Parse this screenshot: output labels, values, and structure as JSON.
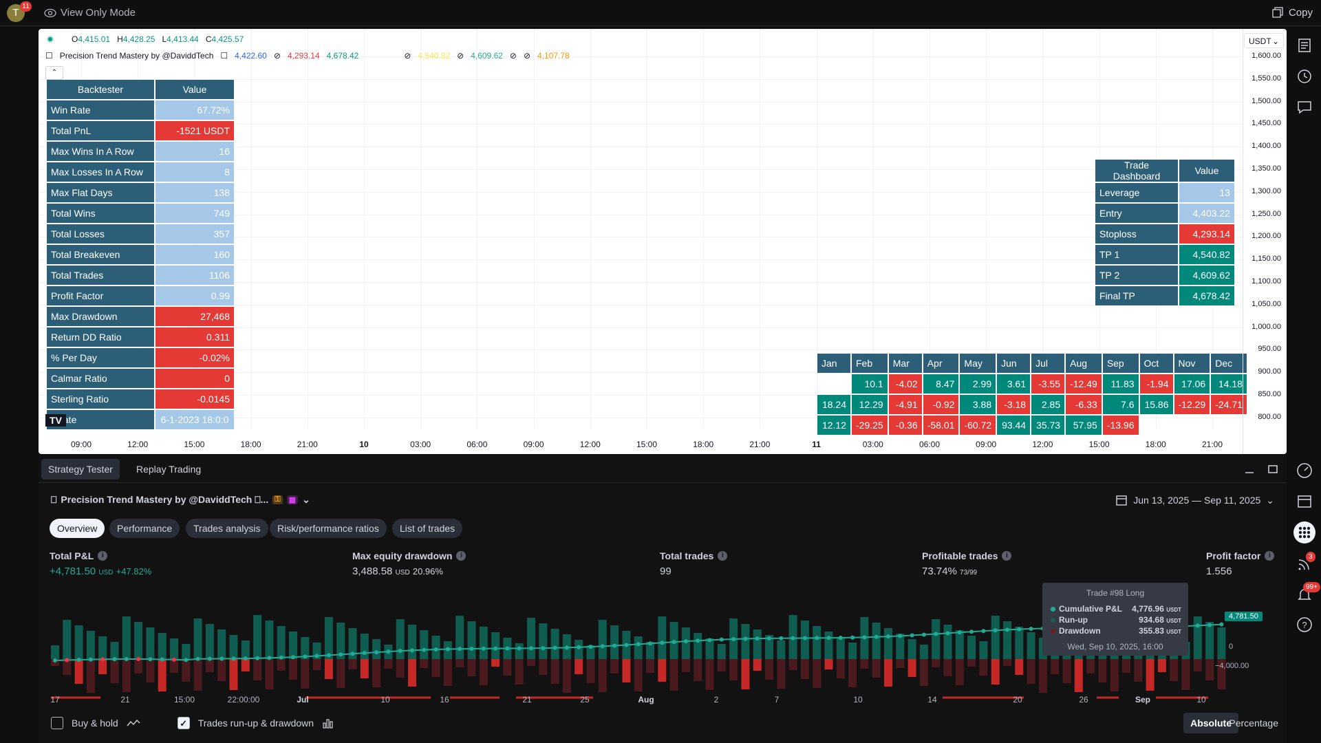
{
  "topbar": {
    "avatar_letter": "T",
    "avatar_badge": "11",
    "view_mode": "View Only Mode",
    "copy_label": "Copy"
  },
  "chart": {
    "ohlc": {
      "o_label": "O",
      "o": "4,415.01",
      "h_label": "H",
      "h": "4,428.25",
      "l_label": "L",
      "l": "4,413.44",
      "c_label": "C",
      "c": "4,425.57"
    },
    "indicator": {
      "name": "Precision Trend Mastery by @DaviddTech",
      "v1": "4,422.60",
      "v2": "4,293.14",
      "v3": "4,678.42",
      "v4": "4,540.82",
      "v5": "4,609.62",
      "v6": "4,107.78"
    },
    "currency": "USDT",
    "y_ticks": [
      "1,600.00",
      "1,550.00",
      "1,500.00",
      "1,450.00",
      "1,400.00",
      "1,350.00",
      "1,300.00",
      "1,250.00",
      "1,200.00",
      "1,150.00",
      "1,100.00",
      "1,050.00",
      "1,000.00",
      "950.00",
      "900.00",
      "850.00",
      "800.00"
    ],
    "x_ticks": [
      "09:00",
      "12:00",
      "15:00",
      "18:00",
      "21:00",
      "10",
      "03:00",
      "06:00",
      "09:00",
      "12:00",
      "15:00",
      "18:00",
      "21:00",
      "11",
      "03:00",
      "06:00",
      "09:00",
      "12:00",
      "15:00",
      "18:00",
      "21:00"
    ],
    "backtester": {
      "headers": [
        "Backtester",
        "Value"
      ],
      "rows": [
        {
          "k": "Win Rate",
          "v": "67.72%",
          "c": "b"
        },
        {
          "k": "Total PnL",
          "v": "-1521 USDT",
          "c": "r"
        },
        {
          "k": "Max Wins In A Row",
          "v": "16",
          "c": "b"
        },
        {
          "k": "Max Losses In A Row",
          "v": "8",
          "c": "b"
        },
        {
          "k": "Max Flat Days",
          "v": "138",
          "c": "b"
        },
        {
          "k": "Total Wins",
          "v": "749",
          "c": "b"
        },
        {
          "k": "Total Losses",
          "v": "357",
          "c": "b"
        },
        {
          "k": "Total Breakeven",
          "v": "160",
          "c": "b"
        },
        {
          "k": "Total Trades",
          "v": "1106",
          "c": "b"
        },
        {
          "k": "Profit Factor",
          "v": "0.99",
          "c": "b"
        },
        {
          "k": "Max Drawdown",
          "v": "27,468",
          "c": "r"
        },
        {
          "k": "Return DD Ratio",
          "v": "0.311",
          "c": "r"
        },
        {
          "k": "% Per Day",
          "v": "-0.02%",
          "c": "r"
        },
        {
          "k": "Calmar Ratio",
          "v": "0",
          "c": "r"
        },
        {
          "k": "Sterling Ratio",
          "v": "-0.0145",
          "c": "r"
        },
        {
          "k": "t Date",
          "v": "6-1-2023 18:0:0",
          "c": "b"
        }
      ]
    },
    "dashboard": {
      "headers": [
        "Trade Dashboard",
        "Value"
      ],
      "rows": [
        {
          "k": "Leverage",
          "v": "13",
          "c": "b"
        },
        {
          "k": "Entry",
          "v": "4,403.22",
          "c": "b"
        },
        {
          "k": "Stoploss",
          "v": "4,293.14",
          "c": "r"
        },
        {
          "k": "TP 1",
          "v": "4,540.82",
          "c": "g"
        },
        {
          "k": "TP 2",
          "v": "4,609.62",
          "c": "g"
        },
        {
          "k": "Final TP",
          "v": "4,678.42",
          "c": "g"
        }
      ]
    },
    "monthly": {
      "months": [
        "Jan",
        "Feb",
        "Mar",
        "Apr",
        "May",
        "Jun",
        "Jul",
        "Aug",
        "Sep",
        "Oct",
        "Nov",
        "Dec"
      ],
      "rows": [
        [
          "",
          "10.1",
          "-4.02",
          "8.47",
          "2.99",
          "3.61",
          "-3.55",
          "-12.49",
          "11.83",
          "-1.94",
          "17.06",
          "14.18"
        ],
        [
          "18.24",
          "12.29",
          "-4.91",
          "-0.92",
          "3.88",
          "-3.18",
          "2.85",
          "-6.33",
          "7.6",
          "15.86",
          "-12.29",
          "-24.71"
        ],
        [
          "12.12",
          "-29.25",
          "-0.36",
          "-58.01",
          "-60.72",
          "93.44",
          "35.73",
          "57.95",
          "-13.96",
          "",
          "",
          ""
        ]
      ]
    }
  },
  "panel": {
    "tabs": [
      "Strategy Tester",
      "Replay Trading"
    ],
    "title": "Precision Trend Mastery by @DaviddTech ⎕...",
    "date_range": "Jun 13, 2025 — Sep 11, 2025",
    "subtabs": [
      "Overview",
      "Performance",
      "Trades analysis",
      "Risk/performance ratios",
      "List of trades"
    ],
    "metrics": {
      "total_pnl": {
        "label": "Total P&L",
        "value": "+4,781.50",
        "unit": "USD",
        "pct": "+47.82%"
      },
      "max_dd": {
        "label": "Max equity drawdown",
        "value": "3,488.58",
        "unit": "USD",
        "pct": "20.96%"
      },
      "total_trades": {
        "label": "Total trades",
        "value": "99"
      },
      "profitable": {
        "label": "Profitable trades",
        "value": "73.74%",
        "sub": "73/99"
      },
      "profit_factor": {
        "label": "Profit factor",
        "value": "1.556"
      }
    },
    "equity": {
      "x_ticks": [
        "17",
        "21",
        "15:00",
        "22:00:00",
        "Jul",
        "10",
        "16",
        "21",
        "25",
        "Aug",
        "2",
        "7",
        "10",
        "14",
        "20",
        "26",
        "Sep",
        "10"
      ],
      "y_labels": [
        "4,781.50",
        "0",
        "−4,000.00"
      ],
      "tooltip": {
        "title": "Trade #98 Long",
        "rows": [
          {
            "label": "Cumulative P&L",
            "value": "4,776.96",
            "unit": "USDT"
          },
          {
            "label": "Run-up",
            "value": "934.68",
            "unit": "USDT"
          },
          {
            "label": "Drawdown",
            "value": "355.83",
            "unit": "USDT"
          }
        ],
        "date": "Wed, Sep 10, 2025, 16:00"
      }
    },
    "bottom": {
      "buy_hold": "Buy & hold",
      "runup": "Trades run-up & drawdown",
      "absolute": "Absolute",
      "percentage": "Percentage"
    }
  },
  "rightbar": {
    "badge_notifications": "3",
    "badge_alerts": "99+"
  }
}
